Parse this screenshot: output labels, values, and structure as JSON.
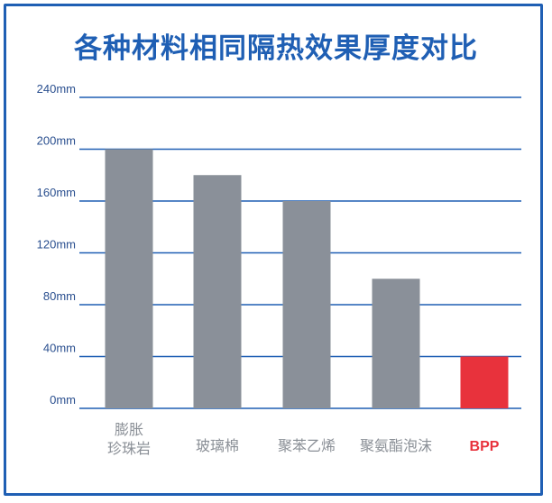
{
  "title": "各种材料相同隔热效果厚度对比",
  "colors": {
    "accent": "#1f5fb4",
    "bar": "#8a9099",
    "highlight": "#e8323c",
    "grid": "#1f5fb4"
  },
  "chart_data": {
    "type": "bar",
    "title": "各种材料相同隔热效果厚度对比",
    "xlabel": "",
    "ylabel": "",
    "unit": "mm",
    "ylim": [
      0,
      240
    ],
    "yticks": [
      "0mm",
      "40mm",
      "80mm",
      "120mm",
      "160mm",
      "200mm",
      "240mm"
    ],
    "ytick_values": [
      0,
      40,
      80,
      120,
      160,
      200,
      240
    ],
    "categories": [
      [
        "膨胀",
        "珍珠岩"
      ],
      [
        "玻璃棉"
      ],
      [
        "聚苯乙烯"
      ],
      [
        "聚氨酯泡沫"
      ],
      [
        "BPP"
      ]
    ],
    "values": [
      200,
      180,
      160,
      100,
      40
    ],
    "highlight_index": 4,
    "grid": true,
    "legend": "none"
  }
}
